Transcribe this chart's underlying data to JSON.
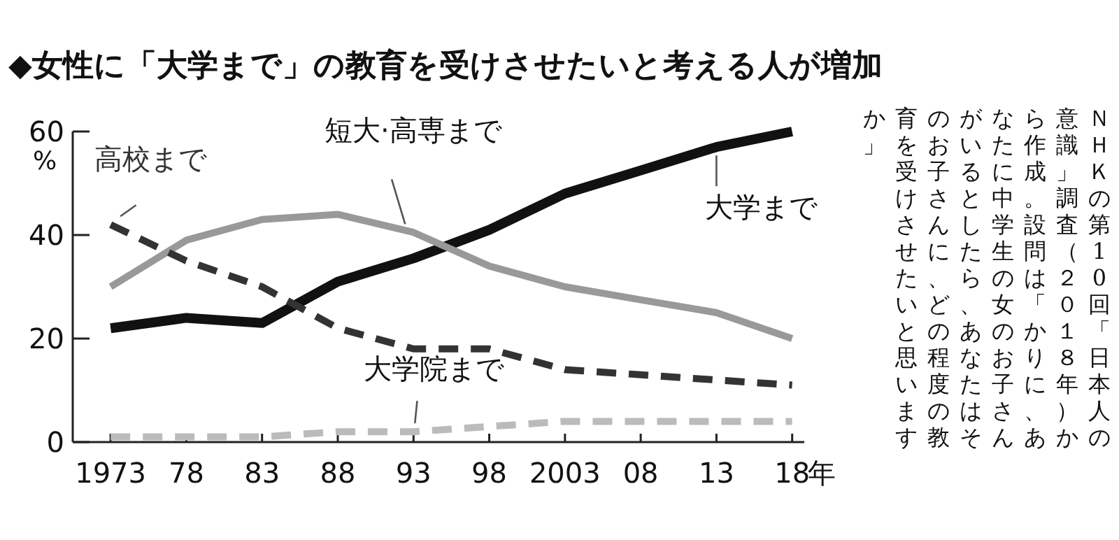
{
  "chart_data": {
    "type": "line",
    "title": "◆女性に「大学まで」の教育を受けさせたいと考える人が増加",
    "ylabel": "%",
    "x": [
      1973,
      1978,
      1983,
      1988,
      1993,
      1998,
      2003,
      2008,
      2013,
      2018
    ],
    "xlim": [
      1970.5,
      2018.8
    ],
    "xticks": [
      {
        "value": 1973,
        "label": "1973"
      },
      {
        "value": 1978,
        "label": "78"
      },
      {
        "value": 1983,
        "label": "83"
      },
      {
        "value": 1988,
        "label": "88"
      },
      {
        "value": 1993,
        "label": "93"
      },
      {
        "value": 1998,
        "label": "98"
      },
      {
        "value": 2003,
        "label": "2003"
      },
      {
        "value": 2008,
        "label": "08"
      },
      {
        "value": 2013,
        "label": "13"
      },
      {
        "value": 2018,
        "label": "18"
      }
    ],
    "xlabel": "年",
    "ylim": [
      0,
      60
    ],
    "yticks": [
      0,
      20,
      40,
      60
    ],
    "series": [
      {
        "name": "大学まで",
        "color": "#111111",
        "line_style": "solid",
        "values": [
          22,
          24,
          23,
          31,
          35.5,
          41,
          48,
          52.5,
          57,
          60
        ]
      },
      {
        "name": "短大·高専まで",
        "color": "#999999",
        "line_style": "solid",
        "values": [
          30,
          39,
          43,
          44,
          40.5,
          34,
          30,
          27.5,
          25,
          20
        ]
      },
      {
        "name": "高校まで",
        "color": "#333333",
        "line_style": "dashed",
        "values": [
          42,
          35,
          30,
          22,
          18,
          18,
          14,
          13,
          12,
          11
        ]
      },
      {
        "name": "大学院まで",
        "color": "#bbbbbb",
        "line_style": "dashed",
        "values": [
          1,
          1,
          1,
          2,
          2,
          3,
          4,
          4,
          4,
          4
        ]
      }
    ],
    "legend": false,
    "marker": "none",
    "grid": false,
    "annotations": [
      "ＮＨＫの第10回「日本人の意識」調査（２０１８年）から作成。設問は「かりに、あなたに中学生の女のお子さんがいるとしたら、あなたはそのお子さんに、どの程度の教育を受けさせたいと思いますか」"
    ]
  }
}
